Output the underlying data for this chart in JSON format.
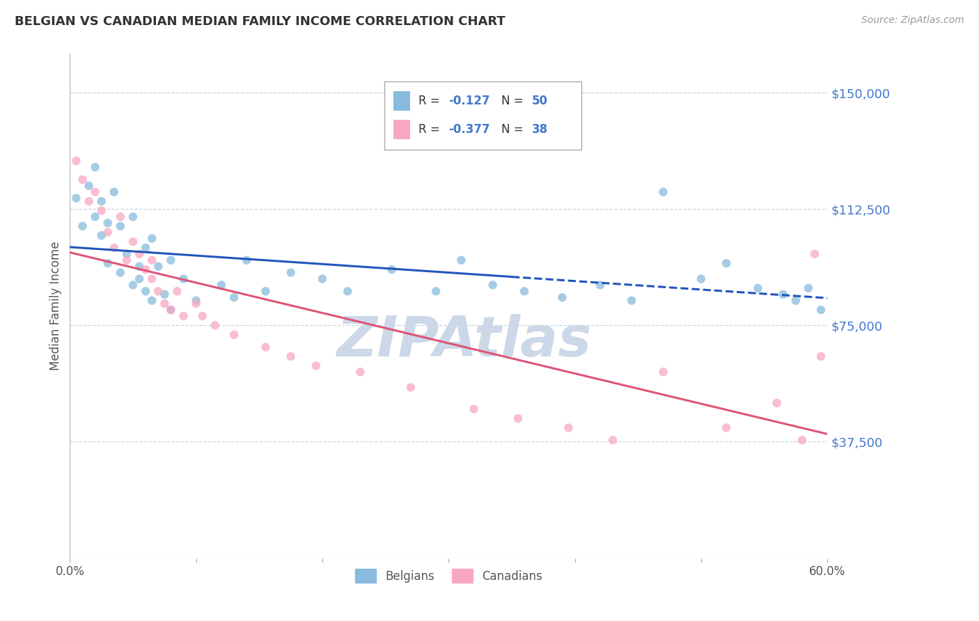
{
  "title": "BELGIAN VS CANADIAN MEDIAN FAMILY INCOME CORRELATION CHART",
  "source_text": "Source: ZipAtlas.com",
  "ylabel": "Median Family Income",
  "xlim": [
    0.0,
    0.6
  ],
  "ylim": [
    0,
    162500
  ],
  "yticks": [
    0,
    37500,
    75000,
    112500,
    150000
  ],
  "ytick_labels": [
    "",
    "$37,500",
    "$75,000",
    "$112,500",
    "$150,000"
  ],
  "legend_r1": "-0.127",
  "legend_n1": "50",
  "legend_r2": "-0.377",
  "legend_n2": "38",
  "blue_color": "#88bbdd",
  "pink_color": "#f7a8c0",
  "trend_blue": "#2255bb",
  "trend_pink": "#dd5577",
  "watermark_color": "#ccd8e8",
  "background_color": "#ffffff",
  "grid_color": "#c8d4e0",
  "belgians_x": [
    0.005,
    0.01,
    0.015,
    0.02,
    0.02,
    0.025,
    0.025,
    0.03,
    0.03,
    0.035,
    0.04,
    0.04,
    0.045,
    0.05,
    0.05,
    0.055,
    0.055,
    0.06,
    0.06,
    0.065,
    0.065,
    0.07,
    0.075,
    0.08,
    0.08,
    0.09,
    0.1,
    0.12,
    0.13,
    0.14,
    0.155,
    0.175,
    0.2,
    0.22,
    0.255,
    0.29,
    0.31,
    0.335,
    0.36,
    0.39,
    0.42,
    0.445,
    0.47,
    0.5,
    0.52,
    0.545,
    0.565,
    0.575,
    0.585,
    0.595
  ],
  "belgians_y": [
    116000,
    107000,
    120000,
    126000,
    110000,
    104000,
    115000,
    108000,
    95000,
    118000,
    92000,
    107000,
    98000,
    88000,
    110000,
    94000,
    90000,
    86000,
    100000,
    83000,
    103000,
    94000,
    85000,
    80000,
    96000,
    90000,
    83000,
    88000,
    84000,
    96000,
    86000,
    92000,
    90000,
    86000,
    93000,
    86000,
    96000,
    88000,
    86000,
    84000,
    88000,
    83000,
    118000,
    90000,
    95000,
    87000,
    85000,
    83000,
    87000,
    80000
  ],
  "canadians_x": [
    0.005,
    0.01,
    0.015,
    0.02,
    0.025,
    0.03,
    0.035,
    0.04,
    0.045,
    0.05,
    0.055,
    0.06,
    0.065,
    0.065,
    0.07,
    0.075,
    0.08,
    0.085,
    0.09,
    0.1,
    0.105,
    0.115,
    0.13,
    0.155,
    0.175,
    0.195,
    0.23,
    0.27,
    0.32,
    0.355,
    0.395,
    0.43,
    0.47,
    0.52,
    0.56,
    0.58,
    0.59,
    0.595
  ],
  "canadians_y": [
    128000,
    122000,
    115000,
    118000,
    112000,
    105000,
    100000,
    110000,
    96000,
    102000,
    98000,
    93000,
    90000,
    96000,
    86000,
    82000,
    80000,
    86000,
    78000,
    82000,
    78000,
    75000,
    72000,
    68000,
    65000,
    62000,
    60000,
    55000,
    48000,
    45000,
    42000,
    38000,
    60000,
    42000,
    50000,
    38000,
    98000,
    65000
  ]
}
